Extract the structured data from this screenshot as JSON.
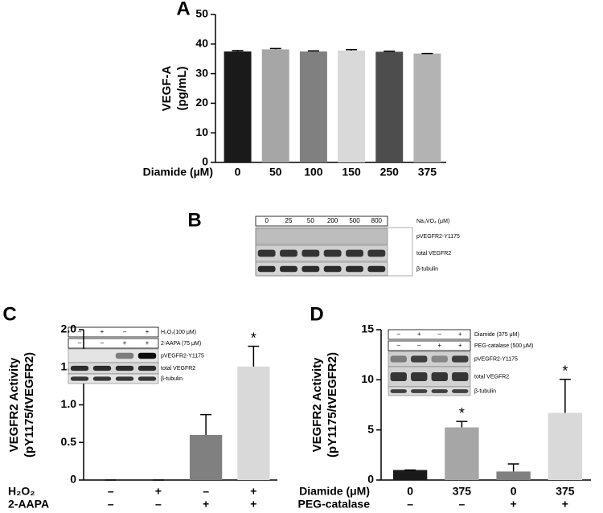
{
  "chart_data": [
    {
      "type": "bar",
      "title": "A",
      "ylabel": [
        "VEGF-A",
        "(pg/mL)"
      ],
      "xlabel": "Diamide (µM)",
      "categories": [
        "0",
        "50",
        "100",
        "150",
        "250",
        "375"
      ],
      "values": [
        37.5,
        38.2,
        37.5,
        37.8,
        37.4,
        36.8
      ],
      "errors": [
        0.3,
        0.3,
        0.2,
        0.3,
        0.2,
        0
      ],
      "colors": [
        "#1a1a1a",
        "#a6a6a6",
        "#808080",
        "#d9d9d9",
        "#4d4d4d",
        "#b3b3b3"
      ],
      "ylim": [
        0,
        50
      ],
      "yticks": [
        0,
        10,
        20,
        30,
        40,
        50
      ]
    },
    {
      "type": "bar",
      "title": "C",
      "ylabel": [
        "VEGFR2 Activity",
        "(pY1175/tVEGFR2)"
      ],
      "conditions": [
        {
          "name": "H₂O₂",
          "levels": [
            "–",
            "+",
            "–",
            "+"
          ]
        },
        {
          "name": "2-AAPA",
          "levels": [
            "–",
            "–",
            "+",
            "+"
          ]
        }
      ],
      "values": [
        0,
        0,
        0.6,
        1.51
      ],
      "errors": [
        0,
        0,
        0.27,
        0.27
      ],
      "significance": [
        null,
        null,
        null,
        "*"
      ],
      "colors": [
        "#1a1a1a",
        "#a6a6a6",
        "#808080",
        "#d9d9d9"
      ],
      "ylim": [
        0,
        2
      ],
      "yticks": [
        0,
        0.5,
        {
          "value": 1,
          "label": "1.0"
        },
        1.5,
        {
          "value": 2,
          "label": "2.0"
        }
      ],
      "inset": {
        "headers": [
          {
            "name": "H₂O₂(100 μM)",
            "levels": [
              "–",
              "+",
              "–",
              "+"
            ]
          },
          {
            "name": "2-AAPA (75 μM)",
            "levels": [
              "–",
              "–",
              "+",
              "+"
            ]
          }
        ],
        "rows": [
          "pVEGFR2-Y1175",
          "total VEGFR2",
          "β-tubulin"
        ]
      }
    },
    {
      "type": "bar",
      "title": "D",
      "ylabel": [
        "VEGFR2 Activity",
        "(pY1175/tVEGFR2)"
      ],
      "conditions": [
        {
          "name": "Diamide (μM)",
          "levels": [
            "0",
            "375",
            "0",
            "375"
          ]
        },
        {
          "name": "PEG-catalase",
          "levels": [
            "–",
            "–",
            "+",
            "+"
          ]
        }
      ],
      "values": [
        1.0,
        5.25,
        0.85,
        6.7
      ],
      "errors": [
        0,
        0.6,
        0.75,
        3.35
      ],
      "significance": [
        null,
        "*",
        null,
        "*"
      ],
      "colors": [
        "#1a1a1a",
        "#a6a6a6",
        "#808080",
        "#d9d9d9"
      ],
      "ylim": [
        0,
        15
      ],
      "yticks": [
        0,
        5,
        10,
        15
      ],
      "inset": {
        "headers": [
          {
            "name": "Diamide (375 μM)",
            "levels": [
              "–",
              "+",
              "–",
              "+"
            ]
          },
          {
            "name": "PEG-catalase (500 μM)",
            "levels": [
              "–",
              "–",
              "+",
              "+"
            ]
          }
        ],
        "rows": [
          "pVEGFR2-Y1175",
          "total VEGFR2",
          "β-tubulin"
        ]
      }
    }
  ],
  "blot_b": {
    "label": "B",
    "headers": [
      {
        "name": "Na₃VO₄ (μM)",
        "levels": [
          "0",
          "25",
          "50",
          "200",
          "500",
          "800"
        ]
      }
    ],
    "rows": [
      "pVEGFR2-Y1175",
      "total VEGFR2",
      "β-tubulin"
    ]
  }
}
